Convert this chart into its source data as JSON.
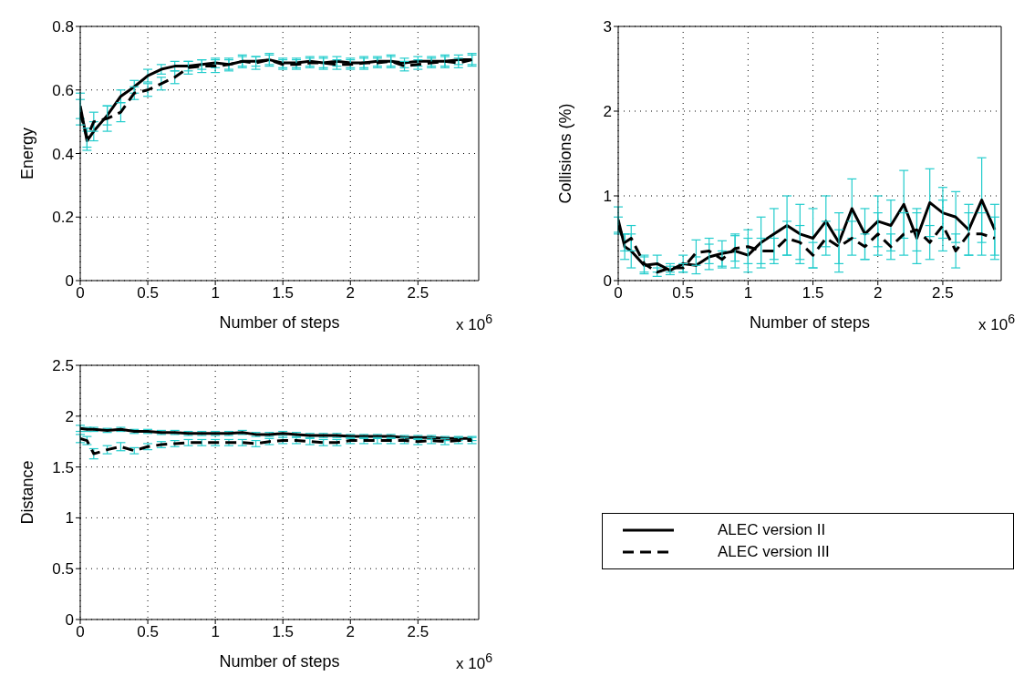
{
  "chart_data": [
    {
      "type": "line",
      "xlabel": "Number of steps",
      "ylabel": "Energy",
      "annotations": [
        "x 10$^{6}$"
      ],
      "x": [
        0,
        0.05,
        0.1,
        0.2,
        0.3,
        0.4,
        0.5,
        0.6,
        0.7,
        0.8,
        0.9,
        1.0,
        1.1,
        1.2,
        1.3,
        1.4,
        1.5,
        1.6,
        1.7,
        1.8,
        1.9,
        2.0,
        2.1,
        2.2,
        2.3,
        2.4,
        2.5,
        2.6,
        2.7,
        2.8,
        2.9
      ],
      "xlim": [
        0,
        2.95
      ],
      "xticks": [
        0,
        0.5,
        1,
        1.5,
        2,
        2.5
      ],
      "ylim": [
        0,
        0.8
      ],
      "yticks": [
        0,
        0.2,
        0.4,
        0.6,
        0.8
      ],
      "grid": true,
      "legend": false,
      "marker": "none",
      "series": [
        {
          "color": "#000000",
          "line_style": "solid",
          "values": [
            0.55,
            0.44,
            0.47,
            0.52,
            0.58,
            0.61,
            0.645,
            0.665,
            0.675,
            0.675,
            0.68,
            0.685,
            0.68,
            0.69,
            0.69,
            0.695,
            0.685,
            0.685,
            0.69,
            0.685,
            0.69,
            0.685,
            0.685,
            0.69,
            0.69,
            0.685,
            0.69,
            0.69,
            0.69,
            0.695,
            0.695
          ],
          "errors": [
            0.04,
            0.03,
            0.03,
            0.03,
            0.02,
            0.02,
            0.02,
            0.015,
            0.015,
            0.015,
            0.015,
            0.015,
            0.015,
            0.015,
            0.015,
            0.015,
            0.015,
            0.015,
            0.015,
            0.015,
            0.015,
            0.015,
            0.015,
            0.015,
            0.015,
            0.015,
            0.015,
            0.015,
            0.015,
            0.015,
            0.015
          ]
        },
        {
          "color": "#000000",
          "line_style": "dashed",
          "values": [
            0.53,
            0.45,
            0.5,
            0.51,
            0.53,
            0.59,
            0.6,
            0.62,
            0.64,
            0.67,
            0.675,
            0.675,
            0.68,
            0.69,
            0.685,
            0.695,
            0.68,
            0.68,
            0.685,
            0.685,
            0.68,
            0.68,
            0.685,
            0.685,
            0.69,
            0.675,
            0.68,
            0.685,
            0.69,
            0.685,
            0.695
          ],
          "errors": [
            0.04,
            0.03,
            0.03,
            0.04,
            0.03,
            0.02,
            0.02,
            0.02,
            0.02,
            0.02,
            0.02,
            0.02,
            0.02,
            0.02,
            0.02,
            0.02,
            0.015,
            0.015,
            0.015,
            0.02,
            0.015,
            0.015,
            0.02,
            0.015,
            0.02,
            0.015,
            0.015,
            0.015,
            0.02,
            0.015,
            0.02
          ]
        }
      ]
    },
    {
      "type": "line",
      "xlabel": "Number of steps",
      "ylabel": "Collisions (%)",
      "annotations": [
        "x 10$^{6}$"
      ],
      "x": [
        0,
        0.05,
        0.1,
        0.2,
        0.3,
        0.4,
        0.5,
        0.6,
        0.7,
        0.8,
        0.9,
        1.0,
        1.1,
        1.2,
        1.3,
        1.4,
        1.5,
        1.6,
        1.7,
        1.8,
        1.9,
        2.0,
        2.1,
        2.2,
        2.3,
        2.4,
        2.5,
        2.6,
        2.7,
        2.8,
        2.9
      ],
      "xlim": [
        0,
        2.95
      ],
      "xticks": [
        0,
        0.5,
        1,
        1.5,
        2,
        2.5
      ],
      "ylim": [
        0,
        3
      ],
      "yticks": [
        0,
        1,
        2,
        3
      ],
      "grid": true,
      "legend": false,
      "marker": "none",
      "series": [
        {
          "color": "#000000",
          "line_style": "solid",
          "values": [
            0.72,
            0.4,
            0.35,
            0.18,
            0.2,
            0.12,
            0.2,
            0.18,
            0.28,
            0.32,
            0.35,
            0.3,
            0.45,
            0.55,
            0.65,
            0.55,
            0.5,
            0.7,
            0.45,
            0.85,
            0.55,
            0.7,
            0.65,
            0.9,
            0.5,
            0.92,
            0.8,
            0.75,
            0.6,
            0.95,
            0.6
          ],
          "errors": [
            0.15,
            0.15,
            0.2,
            0.1,
            0.1,
            0.05,
            0.1,
            0.1,
            0.15,
            0.15,
            0.2,
            0.2,
            0.3,
            0.3,
            0.35,
            0.35,
            0.35,
            0.3,
            0.35,
            0.35,
            0.3,
            0.3,
            0.3,
            0.4,
            0.3,
            0.4,
            0.3,
            0.3,
            0.3,
            0.5,
            0.3
          ]
        },
        {
          "color": "#000000",
          "line_style": "dashed",
          "values": [
            0.65,
            0.45,
            0.5,
            0.2,
            0.1,
            0.15,
            0.15,
            0.33,
            0.35,
            0.25,
            0.38,
            0.4,
            0.35,
            0.35,
            0.5,
            0.45,
            0.3,
            0.5,
            0.4,
            0.5,
            0.4,
            0.55,
            0.4,
            0.55,
            0.6,
            0.45,
            0.65,
            0.35,
            0.55,
            0.55,
            0.5
          ],
          "errors": [
            0.1,
            0.1,
            0.15,
            0.1,
            0.05,
            0.05,
            0.05,
            0.15,
            0.15,
            0.1,
            0.15,
            0.2,
            0.15,
            0.15,
            0.2,
            0.2,
            0.15,
            0.2,
            0.2,
            0.2,
            0.15,
            0.25,
            0.15,
            0.25,
            0.25,
            0.2,
            0.3,
            0.2,
            0.25,
            0.25,
            0.25
          ]
        }
      ]
    },
    {
      "type": "line",
      "xlabel": "Number of steps",
      "ylabel": "Distance",
      "annotations": [
        "x 10$^{6}$"
      ],
      "x": [
        0,
        0.05,
        0.1,
        0.2,
        0.3,
        0.4,
        0.5,
        0.6,
        0.7,
        0.8,
        0.9,
        1.0,
        1.1,
        1.2,
        1.3,
        1.4,
        1.5,
        1.6,
        1.7,
        1.8,
        1.9,
        2.0,
        2.1,
        2.2,
        2.3,
        2.4,
        2.5,
        2.6,
        2.7,
        2.8,
        2.9
      ],
      "xlim": [
        0,
        2.95
      ],
      "xticks": [
        0,
        0.5,
        1,
        1.5,
        2,
        2.5
      ],
      "ylim": [
        0,
        2.5
      ],
      "yticks": [
        0,
        0.5,
        1,
        1.5,
        2,
        2.5
      ],
      "grid": true,
      "legend": "right",
      "marker": "none",
      "series": [
        {
          "name": "ALEC version II",
          "color": "#000000",
          "line_style": "solid",
          "values": [
            1.88,
            1.87,
            1.87,
            1.86,
            1.87,
            1.85,
            1.85,
            1.84,
            1.84,
            1.83,
            1.83,
            1.83,
            1.83,
            1.84,
            1.82,
            1.82,
            1.83,
            1.82,
            1.81,
            1.81,
            1.81,
            1.8,
            1.8,
            1.8,
            1.8,
            1.79,
            1.79,
            1.79,
            1.78,
            1.78,
            1.78
          ],
          "errors": [
            0.03,
            0.02,
            0.02,
            0.02,
            0.02,
            0.02,
            0.02,
            0.02,
            0.02,
            0.02,
            0.02,
            0.02,
            0.02,
            0.02,
            0.02,
            0.02,
            0.02,
            0.02,
            0.02,
            0.02,
            0.02,
            0.02,
            0.02,
            0.02,
            0.02,
            0.02,
            0.02,
            0.02,
            0.02,
            0.02,
            0.02
          ]
        },
        {
          "name": "ALEC version III",
          "color": "#000000",
          "line_style": "dashed",
          "values": [
            1.78,
            1.76,
            1.63,
            1.67,
            1.7,
            1.66,
            1.7,
            1.72,
            1.73,
            1.74,
            1.74,
            1.74,
            1.74,
            1.74,
            1.73,
            1.75,
            1.76,
            1.76,
            1.75,
            1.74,
            1.74,
            1.76,
            1.76,
            1.76,
            1.76,
            1.76,
            1.75,
            1.76,
            1.75,
            1.76,
            1.76
          ],
          "errors": [
            0.04,
            0.04,
            0.05,
            0.04,
            0.04,
            0.03,
            0.03,
            0.03,
            0.03,
            0.03,
            0.03,
            0.03,
            0.03,
            0.03,
            0.03,
            0.03,
            0.03,
            0.03,
            0.03,
            0.03,
            0.03,
            0.03,
            0.03,
            0.03,
            0.03,
            0.03,
            0.03,
            0.03,
            0.03,
            0.03,
            0.03
          ]
        }
      ]
    }
  ]
}
